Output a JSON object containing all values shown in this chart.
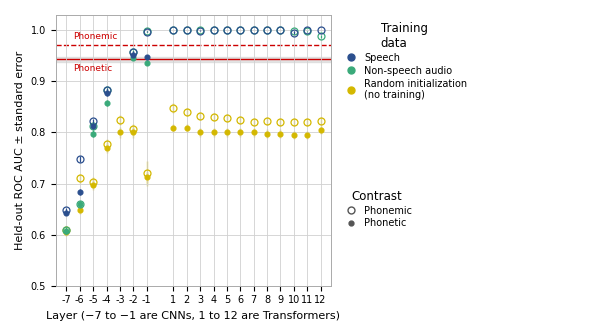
{
  "xlabel": "Layer (−7 to −1 are CNNs, 1 to 12 are Transformers)",
  "ylabel": "Held-out ROC AUC ± standard error",
  "ylim": [
    0.5,
    1.03
  ],
  "xlim": [
    -7.8,
    12.8
  ],
  "xticks": [
    -7,
    -6,
    -5,
    -4,
    -3,
    -2,
    -1,
    1,
    2,
    3,
    4,
    5,
    6,
    7,
    8,
    9,
    10,
    11,
    12
  ],
  "yticks": [
    0.5,
    0.6,
    0.7,
    0.8,
    0.9,
    1.0
  ],
  "phonemic_line": 0.972,
  "phonetic_line": 0.943,
  "phonetic_band_lo": 0.938,
  "phonetic_band_hi": 0.948,
  "color_speech": "#2b4f8e",
  "color_nonspeech": "#3aaa7a",
  "color_random": "#d4b800",
  "speech_phonemic_layers": [
    -7,
    -6,
    -5,
    -4,
    -2,
    -1,
    1,
    2,
    3,
    4,
    5,
    6,
    7,
    8,
    9,
    10,
    11,
    12
  ],
  "speech_phonemic_values": [
    0.648,
    0.748,
    0.822,
    0.883,
    0.957,
    0.997,
    1.0,
    1.0,
    0.999,
    1.0,
    1.0,
    1.0,
    1.0,
    1.0,
    1.0,
    0.995,
    1.0,
    1.0
  ],
  "speech_phonemic_errors": [
    0.005,
    0.005,
    0.005,
    0.005,
    0.003,
    0.001,
    0.0,
    0.0,
    0.001,
    0.0,
    0.0,
    0.0,
    0.0,
    0.0,
    0.0,
    0.003,
    0.0,
    0.0
  ],
  "speech_phonetic_layers": [
    -7,
    -6,
    -5,
    -4,
    -2,
    -1
  ],
  "speech_phonetic_values": [
    0.643,
    0.683,
    0.812,
    0.877,
    0.951,
    0.948
  ],
  "speech_phonetic_errors": [
    0.004,
    0.006,
    0.005,
    0.005,
    0.003,
    0.003
  ],
  "nonspeech_phonemic_layers": [
    -7,
    -6,
    -5,
    -4,
    -2,
    -1,
    1,
    2,
    3,
    4,
    5,
    6,
    7,
    8,
    9,
    10,
    11,
    12
  ],
  "nonspeech_phonemic_values": [
    0.61,
    0.66,
    0.813,
    0.883,
    0.958,
    0.998,
    1.0,
    1.0,
    1.0,
    1.0,
    1.0,
    1.0,
    1.0,
    1.0,
    1.0,
    0.998,
    0.998,
    0.988
  ],
  "nonspeech_phonemic_errors": [
    0.005,
    0.005,
    0.005,
    0.005,
    0.003,
    0.001,
    0.0,
    0.0,
    0.0,
    0.0,
    0.0,
    0.0,
    0.0,
    0.0,
    0.0,
    0.001,
    0.001,
    0.003
  ],
  "nonspeech_phonetic_layers": [
    -7,
    -6,
    -5,
    -4,
    -2,
    -1
  ],
  "nonspeech_phonetic_values": [
    0.607,
    0.66,
    0.798,
    0.858,
    0.946,
    0.937
  ],
  "nonspeech_phonetic_errors": [
    0.005,
    0.005,
    0.006,
    0.006,
    0.003,
    0.004
  ],
  "random_phonemic_layers": [
    -7,
    -6,
    -5,
    -4,
    -3,
    -2,
    -1,
    1,
    2,
    3,
    4,
    5,
    6,
    7,
    8,
    9,
    10,
    11,
    12
  ],
  "random_phonemic_values": [
    0.61,
    0.71,
    0.703,
    0.778,
    0.824,
    0.806,
    0.72,
    0.848,
    0.84,
    0.832,
    0.83,
    0.828,
    0.825,
    0.82,
    0.822,
    0.82,
    0.82,
    0.82,
    0.822
  ],
  "random_phonemic_errors": [
    0.007,
    0.008,
    0.01,
    0.01,
    0.01,
    0.01,
    0.025,
    0.01,
    0.008,
    0.008,
    0.008,
    0.008,
    0.008,
    0.008,
    0.008,
    0.008,
    0.008,
    0.008,
    0.008
  ],
  "random_phonetic_layers": [
    -7,
    -6,
    -5,
    -4,
    -3,
    -2,
    -1,
    1,
    2,
    3,
    4,
    5,
    6,
    7,
    8,
    9,
    10,
    11,
    12
  ],
  "random_phonetic_values": [
    0.605,
    0.648,
    0.698,
    0.77,
    0.8,
    0.8,
    0.712,
    0.808,
    0.808,
    0.8,
    0.8,
    0.8,
    0.8,
    0.8,
    0.798,
    0.798,
    0.795,
    0.795,
    0.805
  ],
  "random_phonetic_errors": [
    0.007,
    0.008,
    0.01,
    0.01,
    0.01,
    0.01,
    0.01,
    0.008,
    0.008,
    0.008,
    0.008,
    0.008,
    0.008,
    0.008,
    0.008,
    0.008,
    0.008,
    0.008,
    0.008
  ]
}
